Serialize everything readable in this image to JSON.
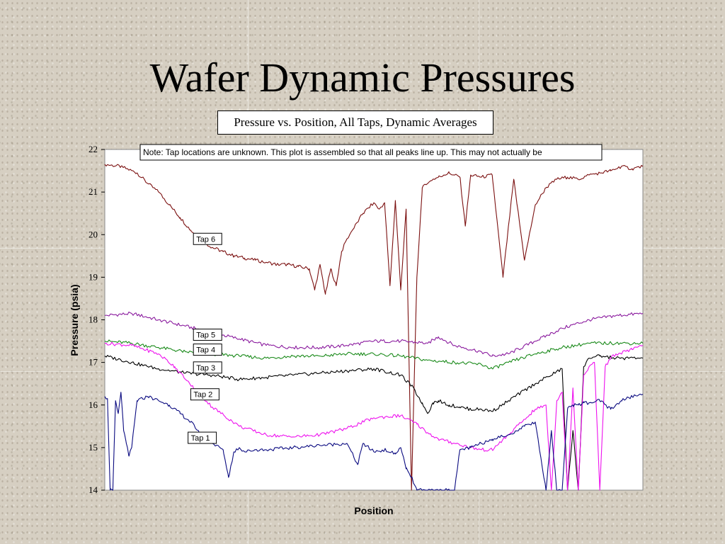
{
  "slide": {
    "title": "Wafer Dynamic Pressures"
  },
  "chart_data": {
    "type": "line",
    "title": "Pressure vs. Position, All Taps, Dynamic Averages",
    "xlabel": "Position",
    "ylabel": "Pressure (psia)",
    "ylim": [
      14,
      22
    ],
    "yticks": [
      "14",
      "15",
      "16",
      "17",
      "18",
      "19",
      "20",
      "21",
      "22"
    ],
    "xlim": [
      0,
      100
    ],
    "grid": false,
    "note": "Note: Tap locations are unknown. This plot is assembled so that all peaks line up. This may not actually be",
    "series": [
      {
        "name": "Tap 6",
        "color": "#7b1010",
        "x": [
          0,
          3,
          6,
          8,
          10,
          12,
          14,
          16,
          18,
          20,
          22,
          24,
          26,
          28,
          30,
          32,
          34,
          36,
          38,
          39,
          40,
          41,
          42,
          43,
          44,
          45,
          46,
          48,
          50,
          51,
          52,
          53,
          54,
          55,
          56,
          57,
          58,
          59,
          60,
          61,
          62,
          63,
          64,
          65,
          66,
          67,
          68,
          70,
          72,
          74,
          76,
          78,
          80,
          82,
          84,
          86,
          88,
          90,
          92,
          94,
          96,
          98,
          100
        ],
        "y": [
          21.65,
          21.6,
          21.45,
          21.2,
          21.0,
          20.7,
          20.4,
          20.1,
          19.85,
          19.7,
          19.6,
          19.5,
          19.45,
          19.4,
          19.35,
          19.3,
          19.3,
          19.25,
          19.2,
          18.7,
          19.3,
          18.6,
          19.2,
          18.8,
          19.6,
          19.9,
          20.1,
          20.5,
          20.75,
          20.6,
          20.75,
          18.8,
          20.8,
          18.7,
          20.6,
          14.0,
          19.0,
          21.1,
          21.2,
          21.3,
          21.35,
          21.4,
          21.45,
          21.4,
          21.35,
          20.2,
          21.4,
          21.35,
          21.4,
          19.0,
          21.3,
          19.4,
          20.7,
          21.1,
          21.3,
          21.35,
          21.3,
          21.4,
          21.45,
          21.5,
          21.6,
          21.55,
          21.6
        ]
      },
      {
        "name": "Tap 5",
        "color": "#8a1a9e",
        "x": [
          0,
          5,
          10,
          15,
          20,
          25,
          30,
          35,
          40,
          45,
          50,
          55,
          60,
          62,
          65,
          70,
          72,
          75,
          80,
          85,
          90,
          95,
          100
        ],
        "y": [
          18.1,
          18.15,
          18.0,
          17.85,
          17.7,
          17.55,
          17.4,
          17.35,
          17.35,
          17.4,
          17.5,
          17.5,
          17.45,
          17.6,
          17.4,
          17.25,
          17.15,
          17.2,
          17.5,
          17.8,
          18.0,
          18.1,
          18.15
        ]
      },
      {
        "name": "Tap 4",
        "color": "#1a8a1a",
        "x": [
          0,
          5,
          10,
          15,
          20,
          25,
          30,
          35,
          40,
          45,
          50,
          55,
          60,
          65,
          70,
          72,
          75,
          80,
          85,
          90,
          95,
          100
        ],
        "y": [
          17.5,
          17.45,
          17.35,
          17.25,
          17.2,
          17.15,
          17.1,
          17.15,
          17.15,
          17.2,
          17.2,
          17.15,
          17.05,
          17.0,
          16.95,
          16.85,
          17.0,
          17.2,
          17.35,
          17.45,
          17.45,
          17.45
        ]
      },
      {
        "name": "Tap 3",
        "color": "#000000",
        "x": [
          0,
          5,
          8,
          10,
          15,
          20,
          25,
          30,
          35,
          40,
          45,
          50,
          55,
          57,
          59,
          60,
          61,
          62,
          64,
          66,
          68,
          70,
          72,
          75,
          80,
          85,
          86,
          87,
          88,
          89,
          90,
          92,
          95,
          100
        ],
        "y": [
          17.15,
          17.0,
          16.9,
          16.85,
          16.75,
          16.7,
          16.6,
          16.65,
          16.7,
          16.75,
          16.8,
          16.85,
          16.7,
          16.45,
          16.05,
          15.8,
          16.05,
          16.1,
          16.0,
          15.95,
          15.9,
          15.9,
          15.85,
          16.1,
          16.5,
          16.85,
          14.0,
          15.4,
          14.0,
          16.9,
          17.1,
          17.15,
          17.1,
          17.1
        ]
      },
      {
        "name": "Tap 2",
        "color": "#ee11ee",
        "x": [
          0,
          5,
          10,
          13,
          15,
          18,
          20,
          25,
          30,
          35,
          40,
          45,
          50,
          55,
          58,
          60,
          62,
          65,
          68,
          70,
          72,
          75,
          80,
          82,
          83,
          84,
          85,
          86,
          87,
          88,
          89,
          90,
          91,
          92,
          93,
          94,
          95,
          98,
          100
        ],
        "y": [
          17.45,
          17.4,
          17.2,
          16.9,
          16.6,
          16.2,
          15.95,
          15.5,
          15.3,
          15.25,
          15.3,
          15.45,
          15.7,
          15.75,
          15.55,
          15.35,
          15.2,
          15.1,
          15.0,
          14.95,
          14.95,
          15.3,
          15.9,
          16.0,
          14.0,
          16.1,
          16.3,
          14.0,
          16.4,
          14.0,
          16.7,
          16.9,
          17.0,
          14.0,
          16.9,
          17.1,
          17.2,
          17.3,
          17.4
        ]
      },
      {
        "name": "Tap 1",
        "color": "#0a0a80",
        "x": [
          0,
          0.5,
          1,
          1.5,
          2,
          2.5,
          3,
          3.5,
          4,
          4.5,
          5,
          6,
          8,
          10,
          12,
          14,
          16,
          18,
          20,
          22,
          23,
          24,
          25,
          26,
          28,
          30,
          35,
          40,
          45,
          47,
          48,
          50,
          52,
          54,
          55,
          56,
          57,
          58,
          59,
          60,
          62,
          64,
          65,
          66,
          68,
          70,
          72,
          75,
          78,
          80,
          82,
          83,
          84,
          85,
          86,
          87,
          88,
          89,
          90,
          92,
          94,
          96,
          98,
          100
        ],
        "y": [
          16.2,
          16.15,
          14.0,
          14.0,
          16.1,
          15.8,
          16.3,
          15.4,
          15.1,
          14.8,
          15.0,
          16.1,
          16.2,
          16.1,
          16.0,
          15.8,
          15.6,
          15.3,
          15.1,
          14.95,
          14.3,
          14.9,
          15.0,
          14.9,
          14.95,
          14.95,
          15.0,
          15.05,
          15.1,
          14.6,
          15.1,
          14.9,
          14.95,
          14.85,
          15.0,
          14.5,
          14.3,
          14.0,
          14.0,
          14.0,
          14.0,
          14.0,
          14.0,
          14.95,
          15.0,
          15.1,
          15.2,
          15.3,
          15.5,
          15.6,
          14.0,
          15.4,
          14.0,
          14.0,
          15.9,
          16.0,
          16.0,
          16.05,
          16.05,
          16.1,
          15.9,
          16.1,
          16.2,
          16.25
        ]
      }
    ],
    "tap_labels": [
      {
        "text": "Tap 6",
        "series": "Tap 6",
        "x": 17.0,
        "y": 19.85
      },
      {
        "text": "Tap 5",
        "series": "Tap 5",
        "x": 17.0,
        "y": 17.6
      },
      {
        "text": "Tap 4",
        "series": "Tap 4",
        "x": 17.0,
        "y": 17.25
      },
      {
        "text": "Tap 3",
        "series": "Tap 3",
        "x": 17.0,
        "y": 16.83
      },
      {
        "text": "Tap 2",
        "series": "Tap 2",
        "x": 16.5,
        "y": 16.2
      },
      {
        "text": "Tap 1",
        "series": "Tap 1",
        "x": 16.0,
        "y": 15.18
      }
    ]
  }
}
